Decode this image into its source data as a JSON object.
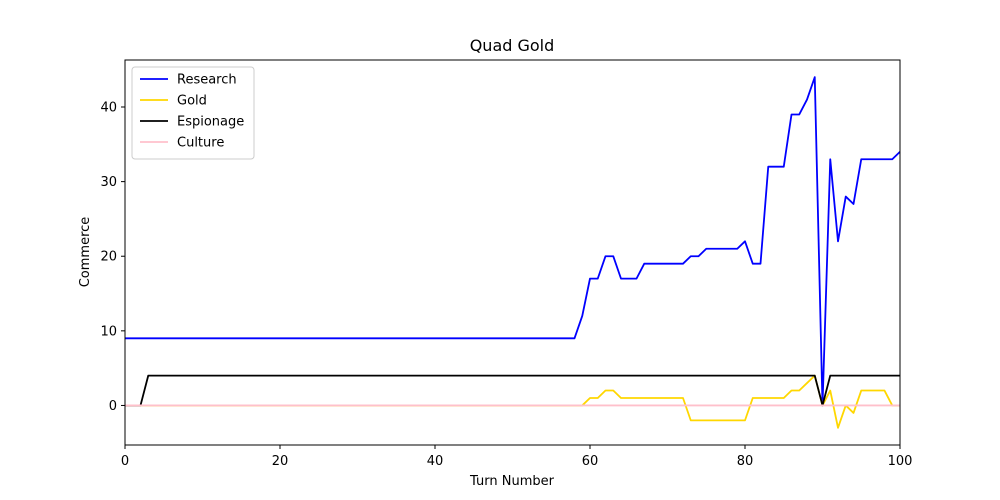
{
  "chart_data": {
    "type": "line",
    "title": "Quad Gold",
    "xlabel": "Turn Number",
    "ylabel": "Commerce",
    "xlim": [
      0,
      100
    ],
    "ylim": [
      -5.3,
      46.3
    ],
    "xticks": [
      0,
      20,
      40,
      60,
      80,
      100
    ],
    "yticks": [
      0,
      10,
      20,
      30,
      40
    ],
    "grid": false,
    "legend_position": "top-left",
    "series": [
      {
        "name": "Research",
        "color": "#0000ff",
        "points": [
          [
            0,
            9
          ],
          [
            58,
            9
          ],
          [
            59,
            12
          ],
          [
            60,
            17
          ],
          [
            61,
            17
          ],
          [
            62,
            20
          ],
          [
            63,
            20
          ],
          [
            64,
            17
          ],
          [
            65,
            17
          ],
          [
            66,
            17
          ],
          [
            67,
            19
          ],
          [
            72,
            19
          ],
          [
            73,
            20
          ],
          [
            74,
            20
          ],
          [
            75,
            21
          ],
          [
            79,
            21
          ],
          [
            80,
            22
          ],
          [
            81,
            19
          ],
          [
            82,
            19
          ],
          [
            83,
            32
          ],
          [
            84,
            32
          ],
          [
            85,
            32
          ],
          [
            86,
            39
          ],
          [
            87,
            39
          ],
          [
            88,
            41
          ],
          [
            89,
            44
          ],
          [
            90,
            0
          ],
          [
            91,
            33
          ],
          [
            92,
            22
          ],
          [
            93,
            28
          ],
          [
            94,
            27
          ],
          [
            95,
            33
          ],
          [
            99,
            33
          ],
          [
            100,
            34
          ]
        ]
      },
      {
        "name": "Gold",
        "color": "#ffd700",
        "points": [
          [
            0,
            0
          ],
          [
            59,
            0
          ],
          [
            60,
            1
          ],
          [
            61,
            1
          ],
          [
            62,
            2
          ],
          [
            63,
            2
          ],
          [
            64,
            1
          ],
          [
            72,
            1
          ],
          [
            73,
            -2
          ],
          [
            80,
            -2
          ],
          [
            81,
            1
          ],
          [
            85,
            1
          ],
          [
            86,
            2
          ],
          [
            87,
            2
          ],
          [
            88,
            3
          ],
          [
            89,
            4
          ],
          [
            90,
            0
          ],
          [
            91,
            2
          ],
          [
            92,
            -3
          ],
          [
            93,
            0
          ],
          [
            94,
            -1
          ],
          [
            95,
            2
          ],
          [
            98,
            2
          ],
          [
            99,
            0
          ],
          [
            100,
            0
          ]
        ]
      },
      {
        "name": "Espionage",
        "color": "#000000",
        "points": [
          [
            0,
            0
          ],
          [
            2,
            0
          ],
          [
            3,
            4
          ],
          [
            89,
            4
          ],
          [
            90,
            0
          ],
          [
            91,
            4
          ],
          [
            100,
            4
          ]
        ]
      },
      {
        "name": "Culture",
        "color": "#ffc0cb",
        "points": [
          [
            0,
            0
          ],
          [
            100,
            0
          ]
        ]
      }
    ]
  }
}
